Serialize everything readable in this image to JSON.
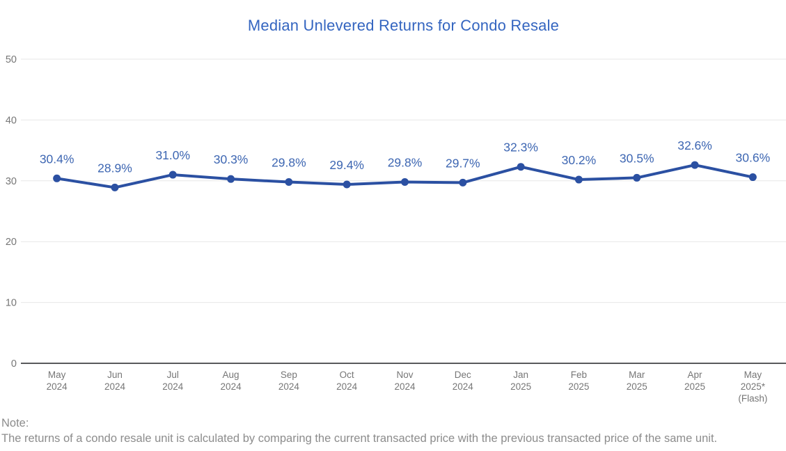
{
  "page": {
    "background": "#ffffff"
  },
  "chart_data": {
    "type": "line",
    "title": "Median Unlevered Returns for Condo Resale",
    "categories": [
      [
        "May",
        "2024"
      ],
      [
        "Jun",
        "2024"
      ],
      [
        "Jul",
        "2024"
      ],
      [
        "Aug",
        "2024"
      ],
      [
        "Sep",
        "2024"
      ],
      [
        "Oct",
        "2024"
      ],
      [
        "Nov",
        "2024"
      ],
      [
        "Dec",
        "2024"
      ],
      [
        "Jan",
        "2025"
      ],
      [
        "Feb",
        "2025"
      ],
      [
        "Mar",
        "2025"
      ],
      [
        "Apr",
        "2025"
      ],
      [
        "May",
        "2025*",
        "(Flash)"
      ]
    ],
    "series": [
      {
        "name": "Median Unlevered Returns",
        "values": [
          30.4,
          28.9,
          31.0,
          30.3,
          29.8,
          29.4,
          29.8,
          29.7,
          32.3,
          30.2,
          30.5,
          32.6,
          30.6
        ]
      }
    ],
    "data_labels": [
      "30.4%",
      "28.9%",
      "31.0%",
      "30.3%",
      "29.8%",
      "29.4%",
      "29.8%",
      "29.7%",
      "32.3%",
      "30.2%",
      "30.5%",
      "32.6%",
      "30.6%"
    ],
    "xlabel": "",
    "ylabel": "",
    "y_ticks": [
      0,
      10,
      20,
      30,
      40,
      50
    ],
    "ylim": [
      0,
      50
    ],
    "grid": "horizontal",
    "legend": "none",
    "colors": {
      "line": "#2B50A2",
      "marker": "#2B50A2",
      "data_label": "#3D66B2",
      "title": "#3465C0",
      "axis_label": "#767676",
      "gridline": "#E7E7E7",
      "baseline": "#58595B",
      "note": "#8C8C8C"
    }
  },
  "note": {
    "label": "Note:",
    "text": "The returns of a condo resale unit is calculated by comparing the current transacted price with the previous transacted price of the same unit."
  }
}
